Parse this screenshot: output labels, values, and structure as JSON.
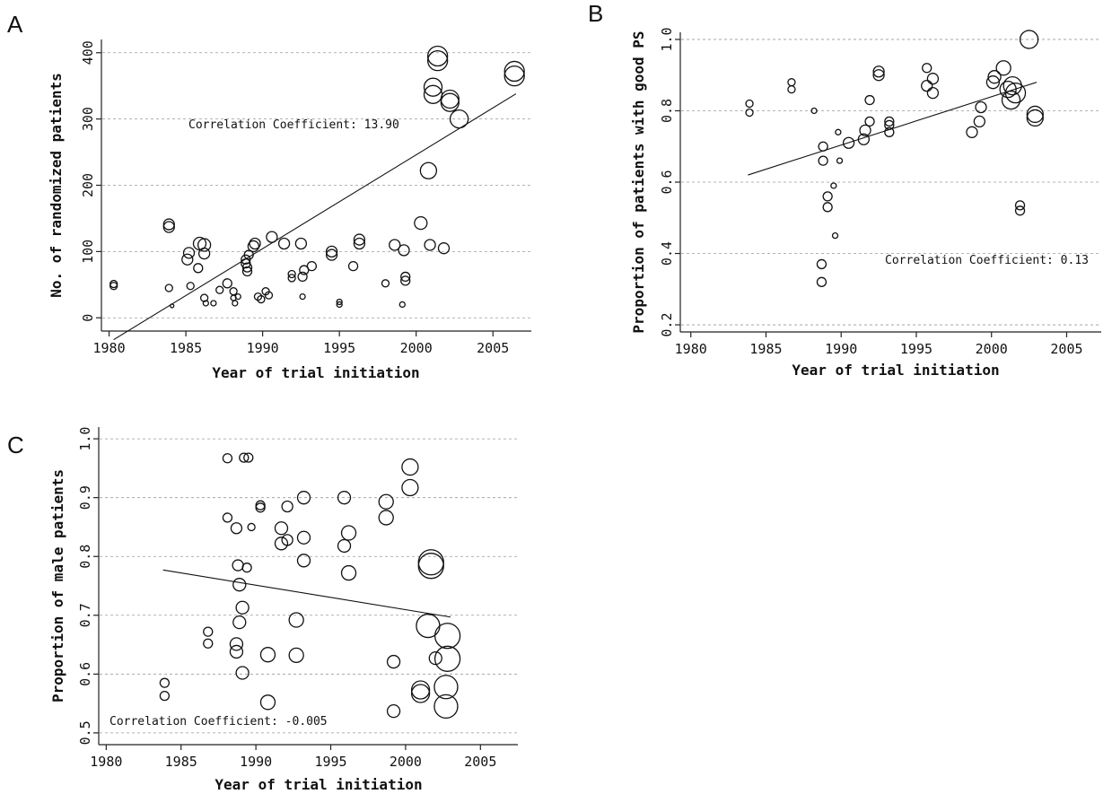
{
  "chart_data": [
    {
      "panel": "A",
      "type": "scatter",
      "xlabel": "Year of trial initiation",
      "ylabel": "No. of randomized patients",
      "xlim": [
        1979.5,
        2007.5
      ],
      "ylim": [
        -20,
        420
      ],
      "xticks": [
        1980,
        1985,
        1990,
        1995,
        2000,
        2005
      ],
      "yticks": [
        0,
        100,
        200,
        300,
        400
      ],
      "grid": "dashed horizontal at y ticks",
      "annotation": "Correlation Coefficient: 13.90",
      "fit_line": {
        "x": [
          1980.3,
          2006.5
        ],
        "y": [
          -33,
          338
        ]
      },
      "points": [
        {
          "x": 1980.3,
          "y": 48,
          "r": 4
        },
        {
          "x": 1980.3,
          "y": 51,
          "r": 4
        },
        {
          "x": 1983.9,
          "y": 137,
          "r": 6
        },
        {
          "x": 1983.9,
          "y": 141,
          "r": 6
        },
        {
          "x": 1983.9,
          "y": 45,
          "r": 4
        },
        {
          "x": 1984.1,
          "y": 18,
          "r": 2
        },
        {
          "x": 1985.1,
          "y": 88,
          "r": 6
        },
        {
          "x": 1985.2,
          "y": 98,
          "r": 6
        },
        {
          "x": 1985.3,
          "y": 48,
          "r": 4
        },
        {
          "x": 1985.9,
          "y": 112,
          "r": 7
        },
        {
          "x": 1985.8,
          "y": 75,
          "r": 5
        },
        {
          "x": 1986.2,
          "y": 110,
          "r": 7
        },
        {
          "x": 1986.2,
          "y": 97,
          "r": 6
        },
        {
          "x": 1986.2,
          "y": 30,
          "r": 4
        },
        {
          "x": 1986.3,
          "y": 22,
          "r": 3
        },
        {
          "x": 1986.8,
          "y": 22,
          "r": 3
        },
        {
          "x": 1987.2,
          "y": 42,
          "r": 4
        },
        {
          "x": 1987.7,
          "y": 52,
          "r": 5
        },
        {
          "x": 1988.1,
          "y": 40,
          "r": 4
        },
        {
          "x": 1988.1,
          "y": 30,
          "r": 3
        },
        {
          "x": 1988.2,
          "y": 22,
          "r": 3
        },
        {
          "x": 1988.4,
          "y": 32,
          "r": 3
        },
        {
          "x": 1988.9,
          "y": 82,
          "r": 5
        },
        {
          "x": 1988.9,
          "y": 88,
          "r": 5
        },
        {
          "x": 1989.0,
          "y": 70,
          "r": 5
        },
        {
          "x": 1989.0,
          "y": 76,
          "r": 5
        },
        {
          "x": 1989.1,
          "y": 95,
          "r": 5
        },
        {
          "x": 1989.4,
          "y": 108,
          "r": 6
        },
        {
          "x": 1989.5,
          "y": 112,
          "r": 6
        },
        {
          "x": 1989.7,
          "y": 32,
          "r": 4
        },
        {
          "x": 1989.9,
          "y": 28,
          "r": 4
        },
        {
          "x": 1990.2,
          "y": 40,
          "r": 4
        },
        {
          "x": 1990.4,
          "y": 34,
          "r": 4
        },
        {
          "x": 1990.6,
          "y": 122,
          "r": 6
        },
        {
          "x": 1991.4,
          "y": 112,
          "r": 6
        },
        {
          "x": 1991.9,
          "y": 60,
          "r": 4
        },
        {
          "x": 1991.9,
          "y": 66,
          "r": 4
        },
        {
          "x": 1992.5,
          "y": 112,
          "r": 6
        },
        {
          "x": 1992.6,
          "y": 32,
          "r": 3
        },
        {
          "x": 1992.6,
          "y": 62,
          "r": 5
        },
        {
          "x": 1992.7,
          "y": 72,
          "r": 5
        },
        {
          "x": 1993.2,
          "y": 78,
          "r": 5
        },
        {
          "x": 1994.5,
          "y": 95,
          "r": 6
        },
        {
          "x": 1994.5,
          "y": 100,
          "r": 6
        },
        {
          "x": 1995.0,
          "y": 20,
          "r": 3
        },
        {
          "x": 1995.0,
          "y": 24,
          "r": 3
        },
        {
          "x": 1995.9,
          "y": 78,
          "r": 5
        },
        {
          "x": 1996.3,
          "y": 112,
          "r": 6
        },
        {
          "x": 1996.3,
          "y": 118,
          "r": 6
        },
        {
          "x": 1998.0,
          "y": 52,
          "r": 4
        },
        {
          "x": 1998.6,
          "y": 110,
          "r": 6
        },
        {
          "x": 1999.1,
          "y": 20,
          "r": 3
        },
        {
          "x": 1999.2,
          "y": 102,
          "r": 6
        },
        {
          "x": 1999.3,
          "y": 56,
          "r": 5
        },
        {
          "x": 1999.3,
          "y": 62,
          "r": 5
        },
        {
          "x": 2000.3,
          "y": 143,
          "r": 7
        },
        {
          "x": 2000.8,
          "y": 222,
          "r": 9
        },
        {
          "x": 2000.9,
          "y": 110,
          "r": 6
        },
        {
          "x": 2001.1,
          "y": 337,
          "r": 10
        },
        {
          "x": 2001.1,
          "y": 348,
          "r": 10
        },
        {
          "x": 2001.4,
          "y": 388,
          "r": 11
        },
        {
          "x": 2001.4,
          "y": 395,
          "r": 11
        },
        {
          "x": 2001.8,
          "y": 105,
          "r": 6
        },
        {
          "x": 2002.2,
          "y": 325,
          "r": 10
        },
        {
          "x": 2002.2,
          "y": 330,
          "r": 10
        },
        {
          "x": 2002.8,
          "y": 300,
          "r": 10
        },
        {
          "x": 2006.4,
          "y": 365,
          "r": 11
        },
        {
          "x": 2006.4,
          "y": 372,
          "r": 11
        }
      ]
    },
    {
      "panel": "B",
      "type": "scatter",
      "xlabel": "Year of trial initiation",
      "ylabel": "Proportion of patients with good PS",
      "xlim": [
        1979.3,
        2007.3
      ],
      "ylim": [
        0.18,
        1.02
      ],
      "xticks": [
        1980,
        1985,
        1990,
        1995,
        2000,
        2005
      ],
      "yticks": [
        0.2,
        0.4,
        0.6,
        0.8,
        1.0
      ],
      "ytick_labels": [
        "0.2",
        "0.4",
        "0.6",
        "0.8",
        "1.0"
      ],
      "grid": "dashed horizontal at y ticks",
      "annotation": "Correlation Coefficient: 0.13",
      "fit_line": {
        "x": [
          1983.8,
          2003.0
        ],
        "y": [
          0.62,
          0.88
        ]
      },
      "points": [
        {
          "x": 1983.9,
          "y": 0.82,
          "r": 4
        },
        {
          "x": 1983.9,
          "y": 0.795,
          "r": 4
        },
        {
          "x": 1986.7,
          "y": 0.88,
          "r": 4
        },
        {
          "x": 1986.7,
          "y": 0.86,
          "r": 4
        },
        {
          "x": 1988.2,
          "y": 0.8,
          "r": 3
        },
        {
          "x": 1988.8,
          "y": 0.7,
          "r": 5
        },
        {
          "x": 1988.8,
          "y": 0.66,
          "r": 5
        },
        {
          "x": 1988.7,
          "y": 0.37,
          "r": 5
        },
        {
          "x": 1988.7,
          "y": 0.32,
          "r": 5
        },
        {
          "x": 1989.1,
          "y": 0.56,
          "r": 5
        },
        {
          "x": 1989.1,
          "y": 0.53,
          "r": 5
        },
        {
          "x": 1989.5,
          "y": 0.59,
          "r": 3
        },
        {
          "x": 1989.6,
          "y": 0.45,
          "r": 3
        },
        {
          "x": 1989.8,
          "y": 0.74,
          "r": 3
        },
        {
          "x": 1989.9,
          "y": 0.66,
          "r": 3
        },
        {
          "x": 1990.5,
          "y": 0.71,
          "r": 6
        },
        {
          "x": 1991.5,
          "y": 0.72,
          "r": 6
        },
        {
          "x": 1991.6,
          "y": 0.745,
          "r": 6
        },
        {
          "x": 1991.9,
          "y": 0.77,
          "r": 5
        },
        {
          "x": 1991.9,
          "y": 0.83,
          "r": 5
        },
        {
          "x": 1992.5,
          "y": 0.9,
          "r": 6
        },
        {
          "x": 1992.5,
          "y": 0.91,
          "r": 6
        },
        {
          "x": 1993.2,
          "y": 0.74,
          "r": 5
        },
        {
          "x": 1993.2,
          "y": 0.76,
          "r": 5
        },
        {
          "x": 1993.2,
          "y": 0.77,
          "r": 5
        },
        {
          "x": 1995.7,
          "y": 0.92,
          "r": 5
        },
        {
          "x": 1995.7,
          "y": 0.87,
          "r": 6
        },
        {
          "x": 1996.1,
          "y": 0.85,
          "r": 6
        },
        {
          "x": 1996.1,
          "y": 0.89,
          "r": 6
        },
        {
          "x": 1998.7,
          "y": 0.74,
          "r": 6
        },
        {
          "x": 1999.2,
          "y": 0.77,
          "r": 6
        },
        {
          "x": 1999.3,
          "y": 0.81,
          "r": 6
        },
        {
          "x": 2000.1,
          "y": 0.88,
          "r": 7
        },
        {
          "x": 2000.2,
          "y": 0.895,
          "r": 7
        },
        {
          "x": 2000.8,
          "y": 0.92,
          "r": 8
        },
        {
          "x": 2001.1,
          "y": 0.86,
          "r": 9
        },
        {
          "x": 2001.3,
          "y": 0.83,
          "r": 10
        },
        {
          "x": 2001.4,
          "y": 0.87,
          "r": 10
        },
        {
          "x": 2001.6,
          "y": 0.85,
          "r": 11
        },
        {
          "x": 2001.9,
          "y": 0.52,
          "r": 5
        },
        {
          "x": 2001.9,
          "y": 0.535,
          "r": 5
        },
        {
          "x": 2002.5,
          "y": 1.0,
          "r": 10
        },
        {
          "x": 2002.9,
          "y": 0.78,
          "r": 9
        },
        {
          "x": 2002.9,
          "y": 0.79,
          "r": 9
        }
      ]
    },
    {
      "panel": "C",
      "type": "scatter",
      "xlabel": "Year of trial initiation",
      "ylabel": "Proportion of male patients",
      "xlim": [
        1979.5,
        2007.5
      ],
      "ylim": [
        0.48,
        1.02
      ],
      "xticks": [
        1980,
        1985,
        1990,
        1995,
        2000,
        2005
      ],
      "yticks": [
        0.5,
        0.6,
        0.7,
        0.8,
        0.9,
        1.0
      ],
      "ytick_labels": [
        "0.5",
        "0.6",
        "0.7",
        "0.8",
        "0.9",
        "1.0"
      ],
      "grid": "dashed horizontal at y ticks",
      "annotation": "Correlation Coefficient: -0.005",
      "fit_line": {
        "x": [
          1983.8,
          2003.0
        ],
        "y": [
          0.777,
          0.697
        ]
      },
      "points": [
        {
          "x": 1983.9,
          "y": 0.585,
          "r": 5
        },
        {
          "x": 1983.9,
          "y": 0.563,
          "r": 5
        },
        {
          "x": 1986.8,
          "y": 0.672,
          "r": 5
        },
        {
          "x": 1986.8,
          "y": 0.652,
          "r": 5
        },
        {
          "x": 1988.1,
          "y": 0.967,
          "r": 5
        },
        {
          "x": 1988.1,
          "y": 0.866,
          "r": 5
        },
        {
          "x": 1988.7,
          "y": 0.848,
          "r": 6
        },
        {
          "x": 1988.8,
          "y": 0.785,
          "r": 6
        },
        {
          "x": 1988.7,
          "y": 0.651,
          "r": 7
        },
        {
          "x": 1988.7,
          "y": 0.638,
          "r": 7
        },
        {
          "x": 1988.9,
          "y": 0.752,
          "r": 7
        },
        {
          "x": 1989.1,
          "y": 0.713,
          "r": 7
        },
        {
          "x": 1988.9,
          "y": 0.688,
          "r": 7
        },
        {
          "x": 1989.1,
          "y": 0.602,
          "r": 7
        },
        {
          "x": 1989.2,
          "y": 0.968,
          "r": 5
        },
        {
          "x": 1989.5,
          "y": 0.968,
          "r": 5
        },
        {
          "x": 1989.4,
          "y": 0.781,
          "r": 5
        },
        {
          "x": 1989.7,
          "y": 0.85,
          "r": 4
        },
        {
          "x": 1990.3,
          "y": 0.883,
          "r": 5
        },
        {
          "x": 1990.3,
          "y": 0.887,
          "r": 5
        },
        {
          "x": 1990.8,
          "y": 0.633,
          "r": 8
        },
        {
          "x": 1990.8,
          "y": 0.552,
          "r": 8
        },
        {
          "x": 1991.7,
          "y": 0.848,
          "r": 7
        },
        {
          "x": 1991.7,
          "y": 0.822,
          "r": 7
        },
        {
          "x": 1992.1,
          "y": 0.885,
          "r": 6
        },
        {
          "x": 1992.1,
          "y": 0.828,
          "r": 6
        },
        {
          "x": 1992.7,
          "y": 0.692,
          "r": 8
        },
        {
          "x": 1992.7,
          "y": 0.632,
          "r": 8
        },
        {
          "x": 1993.2,
          "y": 0.9,
          "r": 7
        },
        {
          "x": 1993.2,
          "y": 0.832,
          "r": 7
        },
        {
          "x": 1993.2,
          "y": 0.793,
          "r": 7
        },
        {
          "x": 1995.9,
          "y": 0.9,
          "r": 7
        },
        {
          "x": 1995.9,
          "y": 0.818,
          "r": 7
        },
        {
          "x": 1996.2,
          "y": 0.84,
          "r": 8
        },
        {
          "x": 1996.2,
          "y": 0.772,
          "r": 8
        },
        {
          "x": 1998.7,
          "y": 0.893,
          "r": 8
        },
        {
          "x": 1998.7,
          "y": 0.866,
          "r": 8
        },
        {
          "x": 1999.2,
          "y": 0.621,
          "r": 7
        },
        {
          "x": 1999.2,
          "y": 0.537,
          "r": 7
        },
        {
          "x": 2000.3,
          "y": 0.952,
          "r": 9
        },
        {
          "x": 2000.3,
          "y": 0.917,
          "r": 9
        },
        {
          "x": 2001.0,
          "y": 0.573,
          "r": 10
        },
        {
          "x": 2001.0,
          "y": 0.567,
          "r": 10
        },
        {
          "x": 2001.5,
          "y": 0.682,
          "r": 13
        },
        {
          "x": 2001.7,
          "y": 0.79,
          "r": 14
        },
        {
          "x": 2001.7,
          "y": 0.784,
          "r": 14
        },
        {
          "x": 2002.0,
          "y": 0.627,
          "r": 7
        },
        {
          "x": 2002.8,
          "y": 0.665,
          "r": 14
        },
        {
          "x": 2002.8,
          "y": 0.626,
          "r": 14
        },
        {
          "x": 2002.7,
          "y": 0.578,
          "r": 13
        },
        {
          "x": 2002.7,
          "y": 0.545,
          "r": 13
        }
      ]
    }
  ]
}
